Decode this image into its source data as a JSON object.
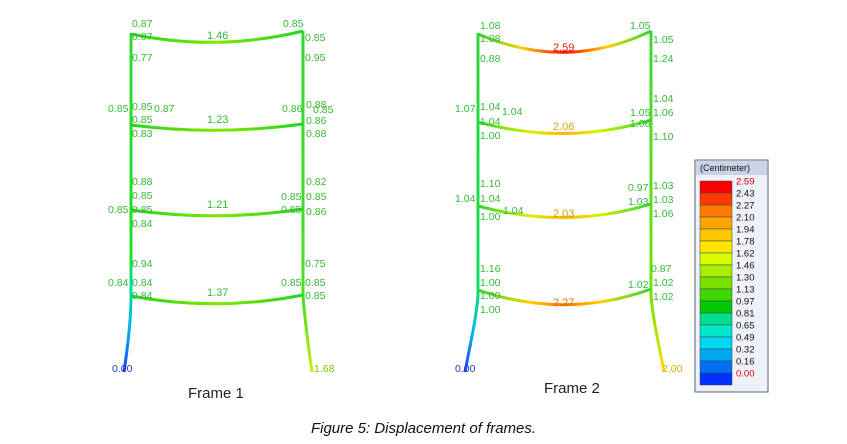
{
  "caption": "Figure 5: Displacement of frames.",
  "legend": {
    "title": "(Centimeter)",
    "values": [
      "2.59",
      "2.43",
      "2.27",
      "2.10",
      "1.94",
      "1.78",
      "1.62",
      "1.46",
      "1.30",
      "1.13",
      "0.97",
      "0.81",
      "0.65",
      "0.49",
      "0.32",
      "0.16",
      "0.00"
    ],
    "colors": [
      "#ff0000",
      "#ff3a00",
      "#ff7a00",
      "#ffa500",
      "#ffc800",
      "#ffe600",
      "#d8ff00",
      "#a8f000",
      "#7ae000",
      "#3ed800",
      "#00c800",
      "#00e08c",
      "#00e8c8",
      "#00d8f0",
      "#00a8f0",
      "#0070f0",
      "#0030ff"
    ],
    "value_colors": [
      "#d40000",
      "#111111",
      "#111111",
      "#111111",
      "#111111",
      "#111111",
      "#111111",
      "#111111",
      "#111111",
      "#111111",
      "#111111",
      "#111111",
      "#111111",
      "#111111",
      "#111111",
      "#111111",
      "#d40000"
    ]
  },
  "frames": [
    {
      "title": "Frame 1",
      "accent_color": "#33bb33",
      "levels": [
        {
          "left_labels": [
            "0.87",
            "0.87",
            "0.77"
          ],
          "mid_label": "1.46",
          "right_labels": [
            "0.85",
            "0.85",
            "0.95"
          ]
        },
        {
          "left_labels": [
            "0.85",
            "0.85",
            "0.87",
            "0.85",
            "0.83"
          ],
          "mid_label": "1.23",
          "right_labels": [
            "0.86",
            "0.88",
            "0.85",
            "0.86",
            "0.88"
          ]
        },
        {
          "left_labels": [
            "0.88",
            "0.85",
            "0.85",
            "0.85",
            "0.84"
          ],
          "mid_label": "1.21",
          "right_labels": [
            "0.82",
            "0.85",
            "0.85",
            "0.85",
            "0.86"
          ]
        },
        {
          "left_labels": [
            "0.94",
            "0.84",
            "0.84",
            "0.84"
          ],
          "mid_label": "1.37",
          "right_labels": [
            "0.75",
            "0.85",
            "0.85",
            "0.85"
          ]
        }
      ],
      "base_left": "0.00",
      "base_right": "1.68"
    },
    {
      "title": "Frame 2",
      "accent_color": "#e0a000",
      "levels": [
        {
          "left_labels": [
            "1.08",
            "1.08",
            "0.88"
          ],
          "mid_label": "2.59",
          "right_labels": [
            "1.05",
            "1.05",
            "1.24"
          ]
        },
        {
          "left_labels": [
            "1.07",
            "1.04",
            "1.04",
            "1.04",
            "1.00"
          ],
          "mid_label": "2.06",
          "right_labels": [
            "1.04",
            "1.05",
            "1.06",
            "1.06",
            "1.10"
          ]
        },
        {
          "left_labels": [
            "1.10",
            "1.04",
            "1.04",
            "1.04",
            "1.00"
          ],
          "mid_label": "2.03",
          "right_labels": [
            "1.03",
            "0.97",
            "1.03",
            "1.03",
            "1.06"
          ]
        },
        {
          "left_labels": [
            "1.16",
            "1.00",
            "1.00",
            "1.00"
          ],
          "mid_label": "2.27",
          "right_labels": [
            "0.87",
            "1.02",
            "1.02",
            "1.02"
          ]
        }
      ],
      "base_left": "0.00",
      "base_right": "2.00"
    }
  ]
}
